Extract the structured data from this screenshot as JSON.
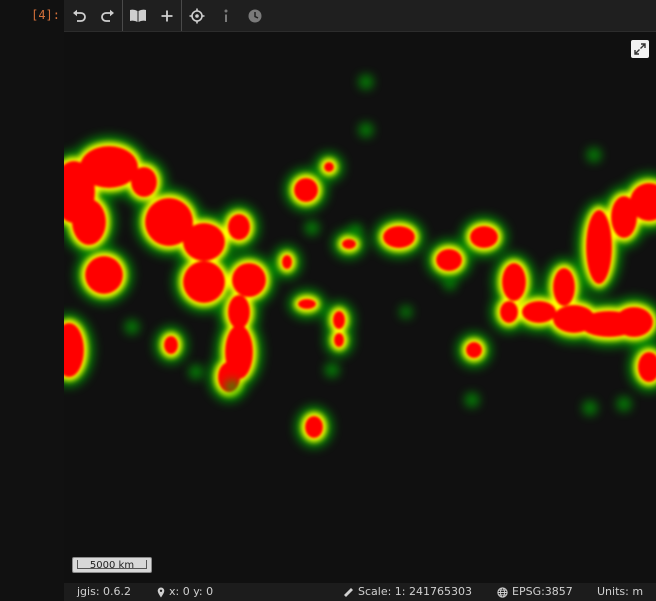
{
  "cell": {
    "prompt": "[4]:"
  },
  "toolbar": {
    "buttons": [
      {
        "name": "undo-icon"
      },
      {
        "name": "redo-icon"
      },
      {
        "name": "layers-book-icon"
      },
      {
        "name": "add-icon"
      },
      {
        "name": "locate-icon"
      },
      {
        "name": "info-icon"
      },
      {
        "name": "clock-icon"
      }
    ]
  },
  "map": {
    "scalebar_label": "5000 km",
    "colors": {
      "hot": "#ff0000",
      "mid": "#ffff00",
      "cool": "#00aa00"
    }
  },
  "statusbar": {
    "version": "jgis: 0.6.2",
    "coords": "x: 0 y: 0",
    "scale": "Scale: 1: 241765303",
    "crs": "EPSG:3857",
    "units": "Units: m"
  }
}
